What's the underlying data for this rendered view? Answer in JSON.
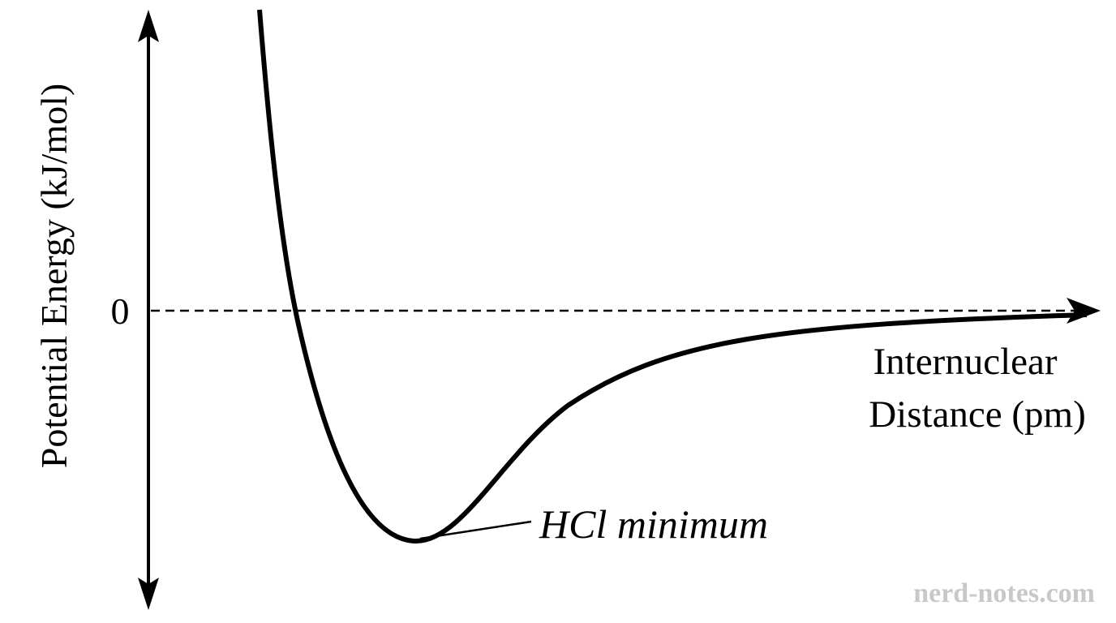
{
  "axes": {
    "y_label": "Potential Energy (kJ/mol)",
    "zero_label": "0",
    "x_label": [
      "Internuclear",
      "Distance (pm)"
    ]
  },
  "annotation": "HCl minimum",
  "watermark": "nerd-notes.com"
}
